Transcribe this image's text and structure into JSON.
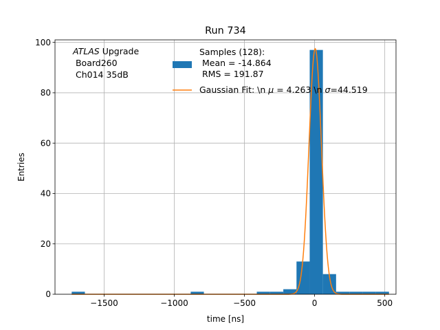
{
  "chart_data": {
    "type": "histogram",
    "title": "Run 734",
    "xlabel": "time [ns]",
    "ylabel": "Entries",
    "xlim": [
      -1850,
      580
    ],
    "ylim": [
      0,
      101
    ],
    "xticks": [
      -1500,
      -1000,
      -500,
      0,
      500
    ],
    "xtick_labels": [
      "−1500",
      "−1000",
      "−500",
      "0",
      "500"
    ],
    "yticks": [
      0,
      20,
      40,
      60,
      80,
      100
    ],
    "ytick_labels": [
      "0",
      "20",
      "40",
      "60",
      "80",
      "100"
    ],
    "grid": true,
    "bar_color": "#1f77b4",
    "fit_color": "#ff7f0e",
    "bins": [
      {
        "x0": -1731,
        "x1": -1637,
        "count": 1
      },
      {
        "x0": -1637,
        "x1": -1542,
        "count": 0
      },
      {
        "x0": -1542,
        "x1": -1448,
        "count": 0
      },
      {
        "x0": -1448,
        "x1": -1354,
        "count": 0
      },
      {
        "x0": -1354,
        "x1": -1260,
        "count": 0
      },
      {
        "x0": -1260,
        "x1": -1166,
        "count": 0
      },
      {
        "x0": -1166,
        "x1": -1071,
        "count": 0
      },
      {
        "x0": -1071,
        "x1": -977,
        "count": 0
      },
      {
        "x0": -977,
        "x1": -883,
        "count": 0
      },
      {
        "x0": -883,
        "x1": -789,
        "count": 1
      },
      {
        "x0": -789,
        "x1": -694,
        "count": 0
      },
      {
        "x0": -694,
        "x1": -600,
        "count": 0
      },
      {
        "x0": -600,
        "x1": -506,
        "count": 0
      },
      {
        "x0": -506,
        "x1": -412,
        "count": 0
      },
      {
        "x0": -412,
        "x1": -318,
        "count": 1
      },
      {
        "x0": -318,
        "x1": -223,
        "count": 1
      },
      {
        "x0": -223,
        "x1": -129,
        "count": 2
      },
      {
        "x0": -129,
        "x1": -35,
        "count": 13
      },
      {
        "x0": -35,
        "x1": 59,
        "count": 97
      },
      {
        "x0": 59,
        "x1": 153,
        "count": 8
      },
      {
        "x0": 153,
        "x1": 248,
        "count": 1
      },
      {
        "x0": 248,
        "x1": 342,
        "count": 1
      },
      {
        "x0": 342,
        "x1": 436,
        "count": 1
      },
      {
        "x0": 436,
        "x1": 530,
        "count": 1
      }
    ],
    "fit": {
      "amplitude": 97.5,
      "mu": 4.263,
      "sigma": 44.519
    },
    "annotation": {
      "line1_italic": "ATLAS",
      "line1_rest": " Upgrade",
      "line2": " Board260",
      "line3": " Ch014 35dB"
    },
    "legend": {
      "placement": "upper-center",
      "samples_line1": "Samples (128):",
      "samples_line2": " Mean = -14.864",
      "samples_line3": " RMS = 191.87",
      "fit_prefix": "Gaussian Fit: \\n ",
      "fit_mu_symbol": "μ",
      "fit_mu_value": " = 4.263 \\n ",
      "fit_sigma_symbol": "σ",
      "fit_sigma_value": "=44.519"
    }
  }
}
